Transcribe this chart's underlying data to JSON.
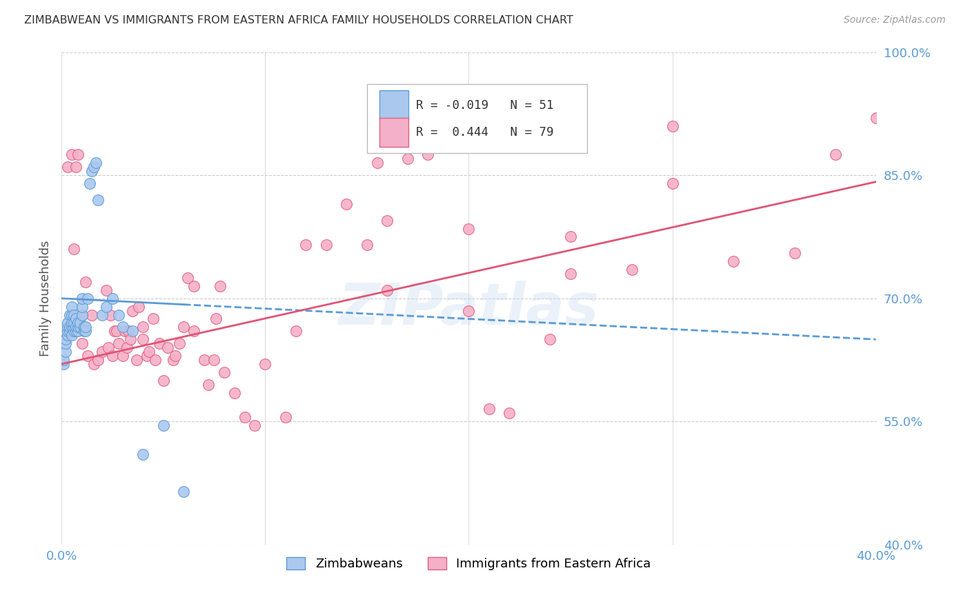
{
  "title": "ZIMBABWEAN VS IMMIGRANTS FROM EASTERN AFRICA FAMILY HOUSEHOLDS CORRELATION CHART",
  "source": "Source: ZipAtlas.com",
  "ylabel": "Family Households",
  "xmin": 0.0,
  "xmax": 0.4,
  "ymin": 0.4,
  "ymax": 1.0,
  "yticks_right": [
    1.0,
    0.85,
    0.7,
    0.55,
    0.4
  ],
  "ytick_right_labels": [
    "100.0%",
    "85.0%",
    "70.0%",
    "55.0%",
    "40.0%"
  ],
  "xticks": [
    0.0,
    0.1,
    0.2,
    0.3,
    0.4
  ],
  "xtick_labels": [
    "0.0%",
    "",
    "",
    "",
    "40.0%"
  ],
  "series1_label": "Zimbabweans",
  "series2_label": "Immigrants from Eastern Africa",
  "series1_color": "#aac8ee",
  "series2_color": "#f4b0c8",
  "series1_edge_color": "#5b9bd5",
  "series2_edge_color": "#e06080",
  "trend1_color": "#5b9bd5",
  "trend2_color": "#e05575",
  "trend1_slope": -0.125,
  "trend1_intercept": 0.7,
  "trend2_slope": 0.555,
  "trend2_intercept": 0.62,
  "background_color": "#ffffff",
  "grid_color": "#cccccc",
  "watermark": "ZIPatlas",
  "series1_x": [
    0.001,
    0.001,
    0.002,
    0.002,
    0.002,
    0.003,
    0.003,
    0.003,
    0.003,
    0.004,
    0.004,
    0.004,
    0.005,
    0.005,
    0.005,
    0.005,
    0.005,
    0.006,
    0.006,
    0.006,
    0.006,
    0.007,
    0.007,
    0.007,
    0.008,
    0.008,
    0.008,
    0.009,
    0.009,
    0.01,
    0.01,
    0.01,
    0.011,
    0.011,
    0.012,
    0.012,
    0.013,
    0.014,
    0.015,
    0.016,
    0.017,
    0.018,
    0.02,
    0.022,
    0.025,
    0.028,
    0.03,
    0.035,
    0.04,
    0.05,
    0.06
  ],
  "series1_y": [
    0.62,
    0.625,
    0.635,
    0.645,
    0.65,
    0.655,
    0.66,
    0.665,
    0.67,
    0.66,
    0.665,
    0.68,
    0.655,
    0.665,
    0.67,
    0.68,
    0.69,
    0.66,
    0.665,
    0.67,
    0.68,
    0.66,
    0.665,
    0.675,
    0.66,
    0.665,
    0.67,
    0.665,
    0.67,
    0.68,
    0.69,
    0.7,
    0.66,
    0.665,
    0.66,
    0.665,
    0.7,
    0.84,
    0.855,
    0.86,
    0.865,
    0.82,
    0.68,
    0.69,
    0.7,
    0.68,
    0.665,
    0.66,
    0.51,
    0.545,
    0.465
  ],
  "series2_x": [
    0.003,
    0.005,
    0.006,
    0.007,
    0.008,
    0.01,
    0.01,
    0.012,
    0.013,
    0.015,
    0.016,
    0.018,
    0.02,
    0.022,
    0.023,
    0.024,
    0.025,
    0.026,
    0.027,
    0.028,
    0.03,
    0.031,
    0.032,
    0.033,
    0.034,
    0.035,
    0.037,
    0.038,
    0.04,
    0.04,
    0.042,
    0.043,
    0.045,
    0.046,
    0.048,
    0.05,
    0.052,
    0.055,
    0.056,
    0.058,
    0.06,
    0.062,
    0.065,
    0.065,
    0.07,
    0.072,
    0.075,
    0.076,
    0.078,
    0.08,
    0.085,
    0.09,
    0.095,
    0.1,
    0.11,
    0.115,
    0.12,
    0.13,
    0.14,
    0.15,
    0.155,
    0.16,
    0.17,
    0.18,
    0.2,
    0.21,
    0.22,
    0.24,
    0.25,
    0.28,
    0.3,
    0.33,
    0.36,
    0.38,
    0.4,
    0.16,
    0.2,
    0.25,
    0.3
  ],
  "series2_y": [
    0.86,
    0.875,
    0.76,
    0.86,
    0.875,
    0.645,
    0.68,
    0.72,
    0.63,
    0.68,
    0.62,
    0.625,
    0.635,
    0.71,
    0.64,
    0.68,
    0.63,
    0.66,
    0.66,
    0.645,
    0.63,
    0.66,
    0.64,
    0.66,
    0.65,
    0.685,
    0.625,
    0.69,
    0.65,
    0.665,
    0.63,
    0.635,
    0.675,
    0.625,
    0.645,
    0.6,
    0.64,
    0.625,
    0.63,
    0.645,
    0.665,
    0.725,
    0.66,
    0.715,
    0.625,
    0.595,
    0.625,
    0.675,
    0.715,
    0.61,
    0.585,
    0.555,
    0.545,
    0.62,
    0.555,
    0.66,
    0.765,
    0.765,
    0.815,
    0.765,
    0.865,
    0.795,
    0.87,
    0.875,
    0.785,
    0.565,
    0.56,
    0.65,
    0.73,
    0.735,
    0.84,
    0.745,
    0.755,
    0.875,
    0.92,
    0.71,
    0.685,
    0.775,
    0.91
  ]
}
